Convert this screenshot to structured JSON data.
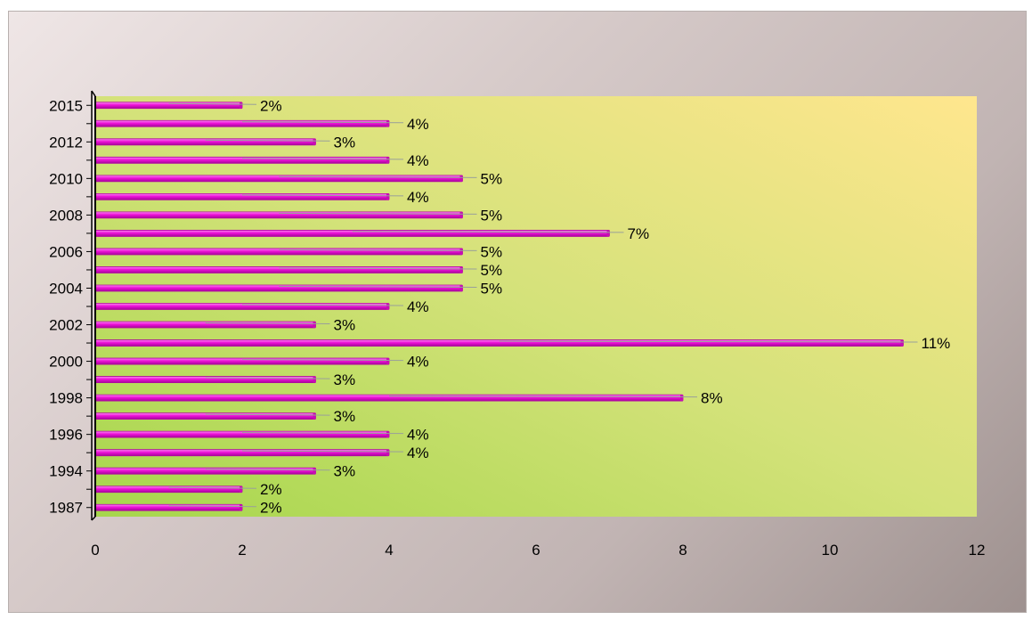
{
  "chart_data": {
    "type": "bar",
    "orientation": "horizontal",
    "title": "",
    "xlabel": "",
    "ylabel": "",
    "xlim": [
      0,
      12
    ],
    "x_ticks": [
      "0",
      "2",
      "4",
      "6",
      "8",
      "10",
      "12"
    ],
    "categories_bottom_to_top": [
      "1987",
      "",
      "1994",
      "",
      "1996",
      "",
      "1998",
      "",
      "2000",
      "",
      "2002",
      "",
      "2004",
      "",
      "2006",
      "",
      "2008",
      "",
      "2010",
      "",
      "2012",
      "",
      "2015"
    ],
    "values": [
      2,
      2,
      3,
      4,
      4,
      3,
      8,
      3,
      4,
      11,
      3,
      4,
      5,
      5,
      5,
      7,
      5,
      4,
      5,
      4,
      3,
      4,
      2
    ],
    "data_labels": [
      "2%",
      "2%",
      "3%",
      "4%",
      "4%",
      "3%",
      "8%",
      "3%",
      "4%",
      "11%",
      "3%",
      "4%",
      "5%",
      "5%",
      "5%",
      "7%",
      "5%",
      "4%",
      "5%",
      "4%",
      "3%",
      "4%",
      "2%"
    ],
    "grid": false,
    "legend": "none",
    "bar_color": "#ee10d8",
    "plot_background": [
      "#a6d64c",
      "#ffe68e"
    ],
    "frame_background": [
      "#efe6e6",
      "#9e918f"
    ]
  }
}
